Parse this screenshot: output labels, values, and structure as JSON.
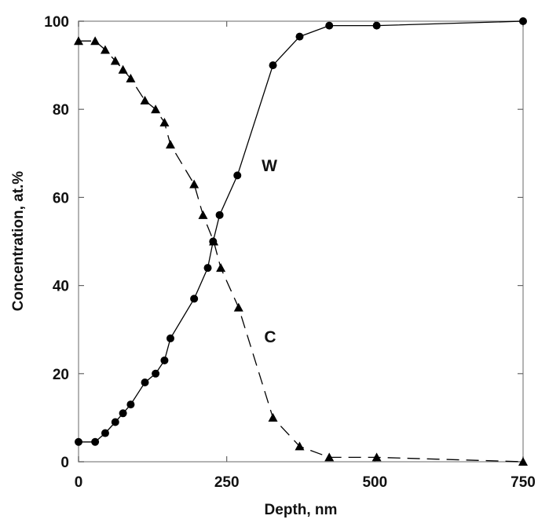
{
  "chart_data": {
    "type": "line",
    "title": "",
    "xlabel": "Depth, nm",
    "ylabel": "Concentration, at.%",
    "xlim": [
      0,
      750
    ],
    "ylim": [
      0,
      100
    ],
    "xticks": [
      0,
      250,
      500,
      750
    ],
    "yticks": [
      0,
      20,
      40,
      60,
      80,
      100
    ],
    "grid": false,
    "legend": "none",
    "series": [
      {
        "name": "W",
        "marker": "circle",
        "line": "solid",
        "color": "#000000",
        "x": [
          0,
          28,
          45,
          62,
          75,
          88,
          112,
          130,
          145,
          155,
          195,
          218,
          227,
          238,
          268,
          328,
          373,
          423,
          503,
          750
        ],
        "y": [
          4.5,
          4.5,
          6.5,
          9,
          11,
          13,
          18,
          20,
          23,
          28,
          37,
          44,
          50,
          56,
          65,
          90,
          96.5,
          99,
          99,
          100
        ]
      },
      {
        "name": "C",
        "marker": "triangle",
        "line": "dashed",
        "color": "#000000",
        "x": [
          0,
          28,
          45,
          62,
          75,
          88,
          112,
          130,
          145,
          155,
          195,
          210,
          228,
          240,
          270,
          328,
          373,
          423,
          503,
          750
        ],
        "y": [
          95.5,
          95.5,
          93.5,
          91,
          89,
          87,
          82,
          80,
          77,
          72,
          63,
          56,
          50,
          44,
          35,
          10,
          3.5,
          1,
          1,
          0
        ]
      }
    ]
  }
}
